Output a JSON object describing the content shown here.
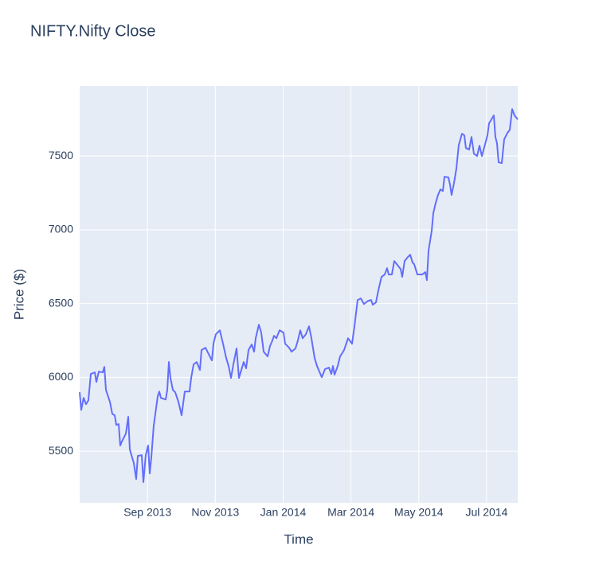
{
  "chart_data": {
    "type": "line",
    "title": "NIFTY.Nifty Close",
    "x_label": "Time",
    "y_label": "Price ($)",
    "x": [
      2013.5,
      2013.5039,
      2013.5098,
      2013.5157,
      2013.5215,
      2013.5274,
      2013.5372,
      2013.5411,
      2013.547,
      2013.5568,
      2013.5607,
      2013.5646,
      2013.5744,
      2013.5802,
      2013.5861,
      2013.59,
      2013.5959,
      2013.5998,
      2013.6037,
      2013.6135,
      2013.6194,
      2013.6233,
      2013.6331,
      2013.6389,
      2013.6429,
      2013.6526,
      2013.6566,
      2013.6624,
      2013.6683,
      2013.6722,
      2013.6761,
      2013.682,
      2013.6918,
      2013.6957,
      2013.6996,
      2013.7114,
      2013.7153,
      2013.7192,
      2013.7231,
      2013.729,
      2013.7348,
      2013.7427,
      2013.7505,
      2013.7583,
      2013.7701,
      2013.774,
      2013.7799,
      2013.7877,
      2013.7955,
      2013.7994,
      2013.8092,
      2013.817,
      2013.8249,
      2013.8288,
      2013.8346,
      2013.8444,
      2013.8523,
      2013.8601,
      2013.866,
      2013.8718,
      2013.8777,
      2013.8855,
      2013.8914,
      2013.9031,
      2013.909,
      2013.9149,
      2013.9227,
      2013.9286,
      2013.9325,
      2013.9403,
      2013.9462,
      2013.9521,
      2013.9619,
      2013.9677,
      2013.9736,
      2013.9775,
      2013.9834,
      2013.9912,
      2014.001,
      2014.0049,
      2014.0147,
      2014.0206,
      2014.0303,
      2014.0362,
      2014.0421,
      2014.048,
      2014.0558,
      2014.0636,
      2014.0695,
      2014.0773,
      2014.0832,
      2014.0891,
      2014.0949,
      2014.1028,
      2014.1125,
      2014.1184,
      2014.1223,
      2014.1262,
      2014.1341,
      2014.1399,
      2014.1497,
      2014.1595,
      2014.1693,
      2014.1752,
      2014.183,
      2014.1908,
      2014.1987,
      2014.2084,
      2014.2163,
      2014.2202,
      2014.228,
      2014.2339,
      2014.2417,
      2014.2495,
      2014.2554,
      2014.2593,
      2014.2671,
      2014.273,
      2014.2808,
      2014.2887,
      2014.2926,
      2014.2984,
      2014.3063,
      2014.3122,
      2014.318,
      2014.3219,
      2014.3298,
      2014.3415,
      2014.3493,
      2014.3532,
      2014.3572,
      2014.365,
      2014.3689,
      2014.3748,
      2014.3806,
      2014.3865,
      2014.3924,
      2014.3963,
      2014.4061,
      2014.41,
      2014.4139,
      2014.4198,
      2014.4256,
      2014.4315,
      2014.4394,
      2014.4452,
      2014.4491,
      2014.457,
      2014.4628,
      2014.4687,
      2014.4765,
      2014.4824,
      2014.4883,
      2014.4942,
      2014.502,
      2014.5059,
      2014.5118,
      2014.5176,
      2014.5215,
      2014.5255,
      2014.5294,
      2014.5372,
      2014.5431,
      2014.5509,
      2014.5568,
      2014.5627,
      2014.5685,
      2014.5764
    ],
    "values": [
      5899,
      5780,
      5861,
      5818,
      5845,
      6023,
      6034,
      5969,
      6039,
      6034,
      6071,
      5915,
      5834,
      5753,
      5743,
      5678,
      5683,
      5538,
      5565,
      5619,
      5732,
      5511,
      5419,
      5311,
      5468,
      5473,
      5290,
      5473,
      5538,
      5349,
      5457,
      5673,
      5872,
      5904,
      5861,
      5850,
      5915,
      6104,
      5996,
      5915,
      5899,
      5834,
      5743,
      5904,
      5904,
      5996,
      6088,
      6104,
      6050,
      6185,
      6201,
      6158,
      6115,
      6228,
      6292,
      6319,
      6228,
      6131,
      6077,
      5996,
      6088,
      6196,
      5996,
      6104,
      6061,
      6185,
      6223,
      6174,
      6265,
      6357,
      6303,
      6174,
      6142,
      6212,
      6250,
      6282,
      6265,
      6319,
      6303,
      6228,
      6201,
      6174,
      6196,
      6250,
      6319,
      6265,
      6292,
      6346,
      6265,
      6131,
      6077,
      6039,
      6001,
      6056,
      6066,
      6023,
      6077,
      6018,
      6077,
      6142,
      6185,
      6265,
      6228,
      6346,
      6524,
      6535,
      6497,
      6518,
      6524,
      6492,
      6508,
      6589,
      6681,
      6697,
      6740,
      6697,
      6697,
      6788,
      6761,
      6734,
      6681,
      6788,
      6815,
      6831,
      6778,
      6767,
      6697,
      6697,
      6713,
      6659,
      6858,
      6993,
      7112,
      7182,
      7236,
      7274,
      7263,
      7360,
      7355,
      7306,
      7236,
      7317,
      7414,
      7575,
      7651,
      7640,
      7554,
      7544,
      7629,
      7516,
      7500,
      7570,
      7500,
      7559,
      7640,
      7721,
      7748,
      7775,
      7629,
      7586,
      7457,
      7452,
      7613,
      7656,
      7677,
      7818,
      7775,
      7748
    ],
    "color": "#636efa",
    "xlim": [
      2013.5,
      2014.5764
    ],
    "xticks": [
      {
        "value": 2013.6667,
        "label": "Sep 2013"
      },
      {
        "value": 2013.8333,
        "label": "Nov 2013"
      },
      {
        "value": 2014.0,
        "label": "Jan 2014"
      },
      {
        "value": 2014.1667,
        "label": "Mar 2014"
      },
      {
        "value": 2014.3333,
        "label": "May 2014"
      },
      {
        "value": 2014.5,
        "label": "Jul 2014"
      }
    ],
    "ylim": [
      5150,
      7975
    ],
    "yticks": [
      5500,
      6000,
      6500,
      7000,
      7500
    ],
    "grid": true
  }
}
